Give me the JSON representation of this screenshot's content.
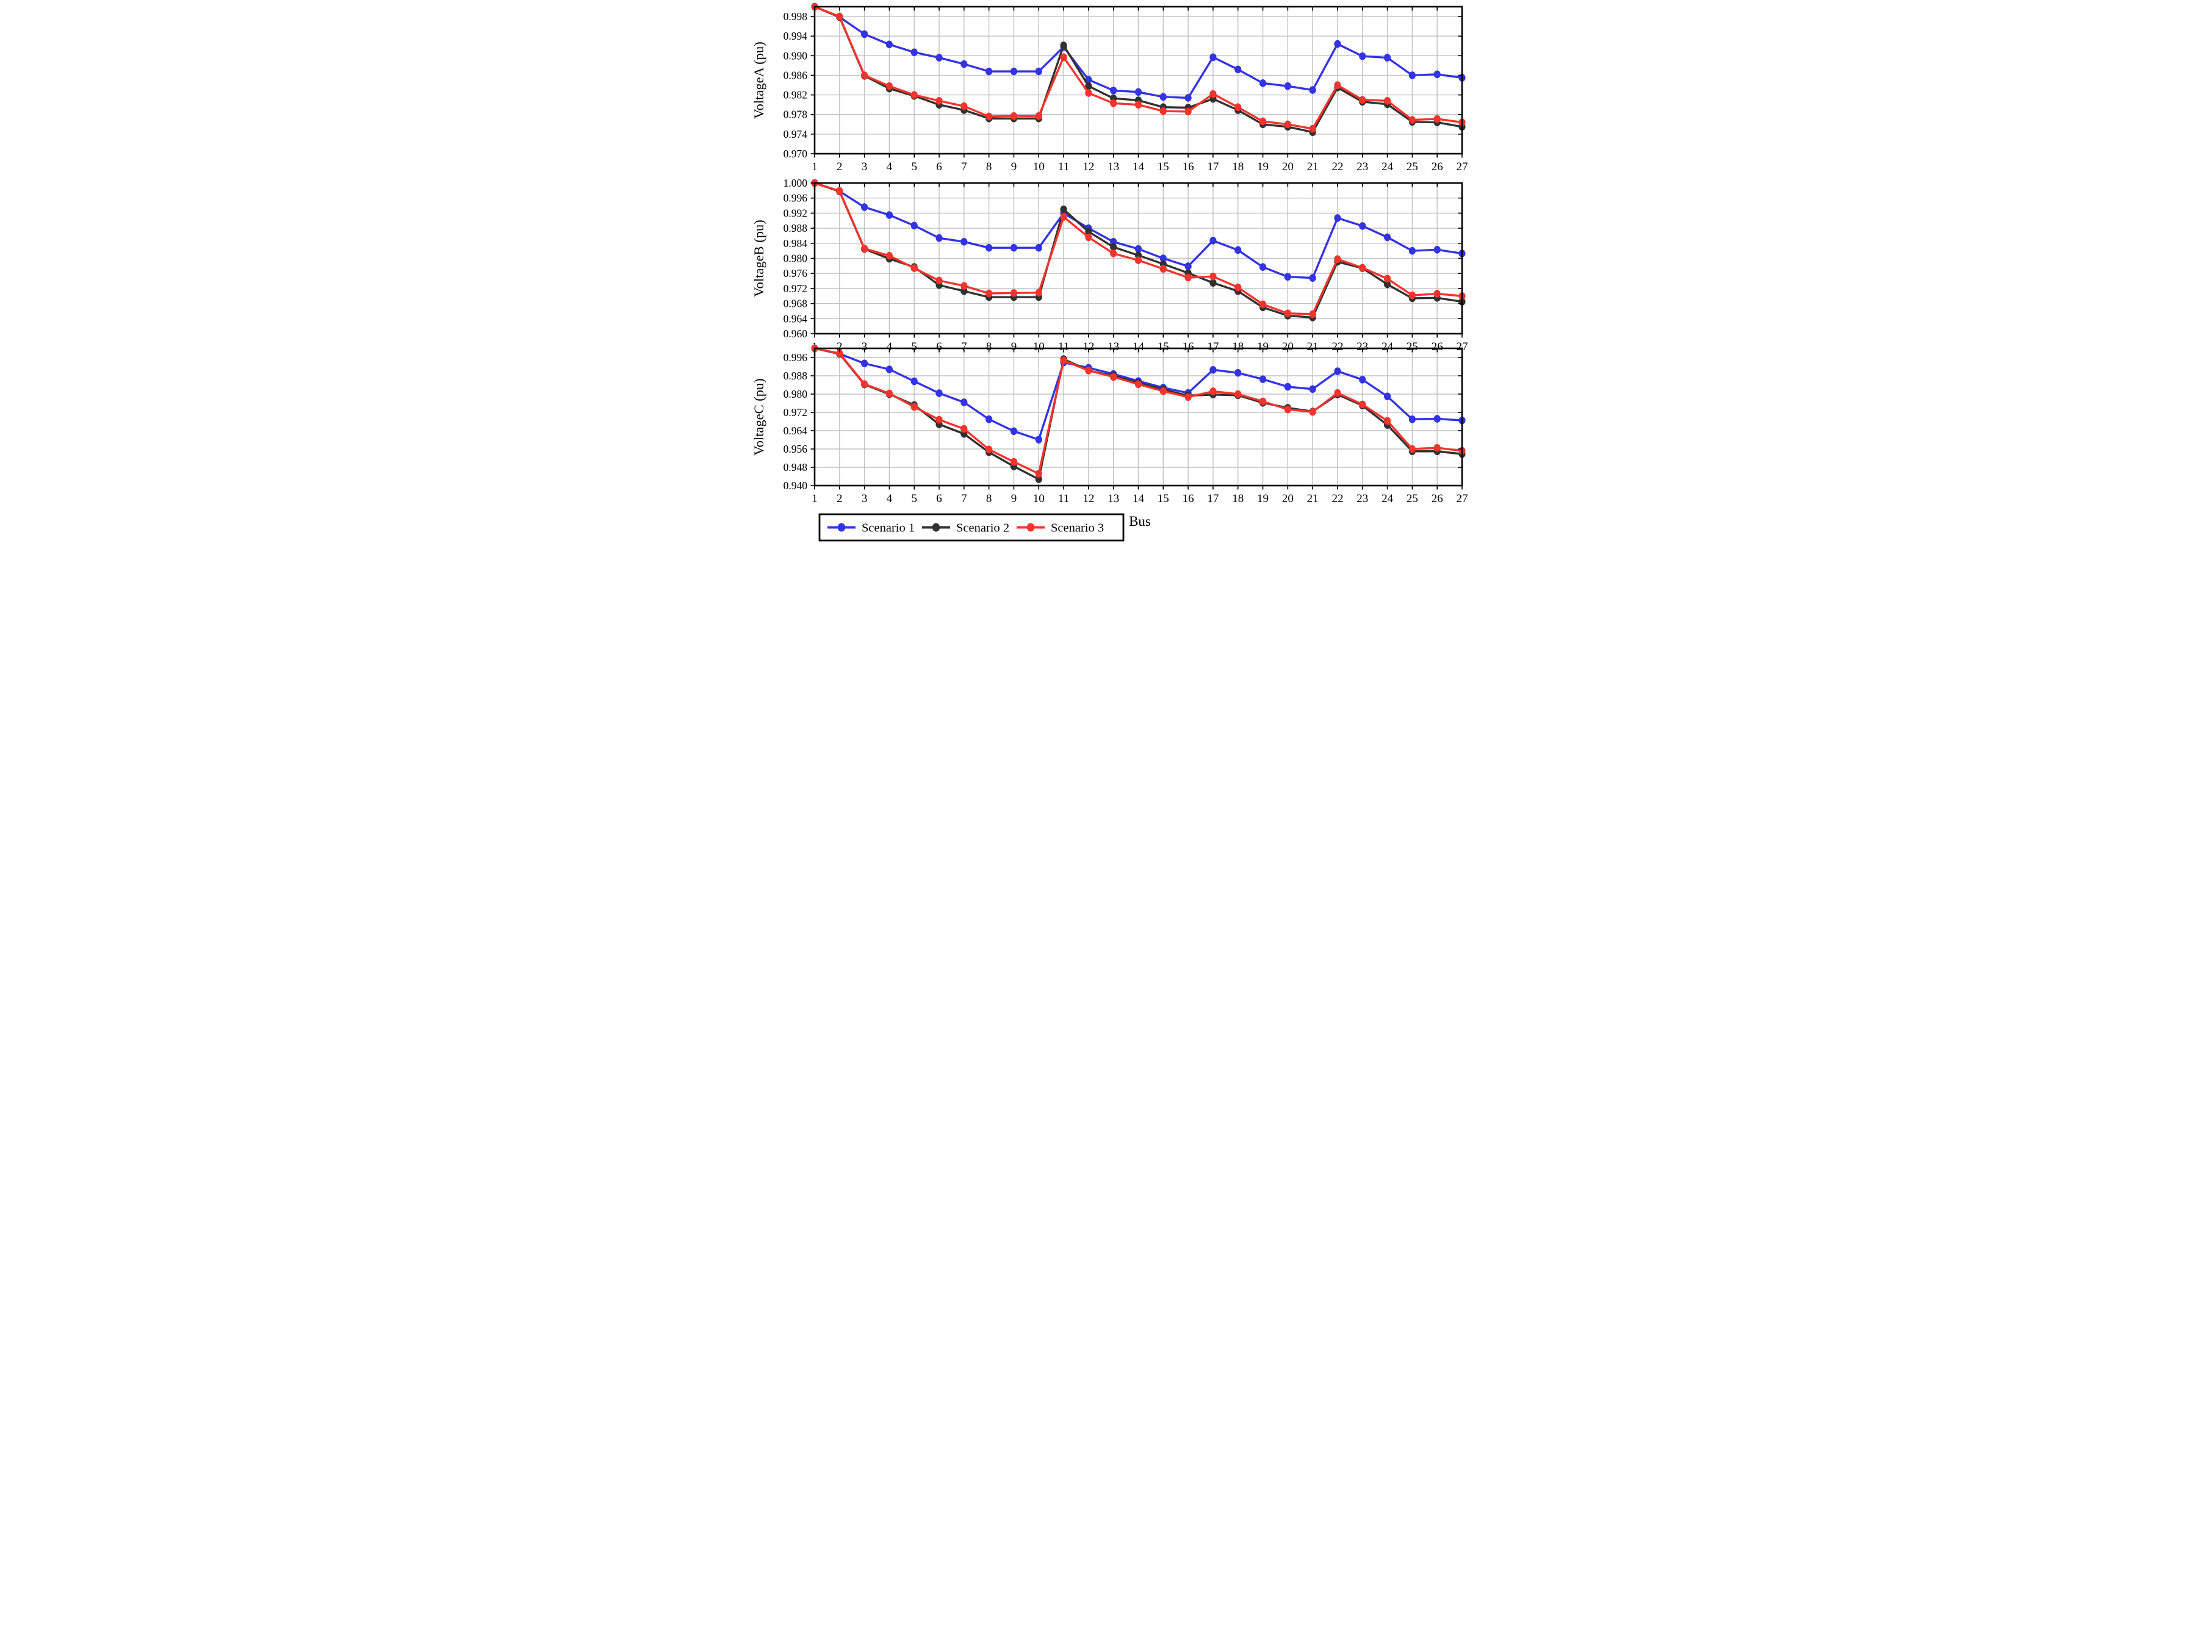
{
  "figure": {
    "xlabel": "Bus",
    "background_color": "#ffffff",
    "grid_color": "#c2c2c2",
    "axis_color": "#000000"
  },
  "legend": {
    "entries": [
      {
        "label": "Scenario 1",
        "color": "#3333e6"
      },
      {
        "label": "Scenario 2",
        "color": "#333130"
      },
      {
        "label": "Scenario 3",
        "color": "#f4342c"
      }
    ]
  },
  "chart_data": [
    {
      "type": "line",
      "ylabel": "VoltageA (pu)",
      "xlabel": "Bus",
      "x": [
        1,
        2,
        3,
        4,
        5,
        6,
        7,
        8,
        9,
        10,
        11,
        12,
        13,
        14,
        15,
        16,
        17,
        18,
        19,
        20,
        21,
        22,
        23,
        24,
        25,
        26,
        27
      ],
      "ylim": [
        0.97,
        1.0
      ],
      "yticks": [
        0.998,
        0.994,
        0.99,
        0.986,
        0.982,
        0.978,
        0.974,
        0.97
      ],
      "ytick_labels": [
        "0.998",
        "0.994",
        "0.990",
        "0.986",
        "0.982",
        "0.978",
        "0.974",
        "0.970"
      ],
      "grid": true,
      "legend_position": "below-figure",
      "series": [
        {
          "name": "Scenario 1",
          "color": "#3333e6",
          "values": [
            1.0,
            0.9979,
            0.9944,
            0.9923,
            0.9907,
            0.9896,
            0.9883,
            0.9868,
            0.9868,
            0.9868,
            0.9918,
            0.9851,
            0.9829,
            0.9826,
            0.9816,
            0.9814,
            0.9897,
            0.9872,
            0.9844,
            0.9838,
            0.983,
            0.9924,
            0.9899,
            0.9896,
            0.986,
            0.9862,
            0.9855
          ]
        },
        {
          "name": "Scenario 2",
          "color": "#333130",
          "values": [
            1.0,
            0.9979,
            0.9859,
            0.9833,
            0.9818,
            0.98,
            0.9789,
            0.9772,
            0.9772,
            0.9772,
            0.9921,
            0.9838,
            0.9813,
            0.9809,
            0.9795,
            0.9794,
            0.9812,
            0.9789,
            0.976,
            0.9755,
            0.9744,
            0.9835,
            0.9806,
            0.9801,
            0.9765,
            0.9764,
            0.9755
          ]
        },
        {
          "name": "Scenario 3",
          "color": "#f4342c",
          "values": [
            1.0,
            0.998,
            0.986,
            0.9838,
            0.982,
            0.9808,
            0.9797,
            0.9776,
            0.9777,
            0.9777,
            0.9897,
            0.9824,
            0.9803,
            0.98,
            0.9787,
            0.9786,
            0.9822,
            0.9795,
            0.9766,
            0.976,
            0.9751,
            0.984,
            0.981,
            0.9808,
            0.9769,
            0.9771,
            0.9764
          ]
        }
      ]
    },
    {
      "type": "line",
      "ylabel": "VoltageB (pu)",
      "xlabel": "Bus",
      "x": [
        1,
        2,
        3,
        4,
        5,
        6,
        7,
        8,
        9,
        10,
        11,
        12,
        13,
        14,
        15,
        16,
        17,
        18,
        19,
        20,
        21,
        22,
        23,
        24,
        25,
        26,
        27
      ],
      "ylim": [
        0.96,
        1.0
      ],
      "yticks": [
        1.0,
        0.996,
        0.992,
        0.988,
        0.984,
        0.98,
        0.976,
        0.972,
        0.968,
        0.964,
        0.96
      ],
      "ytick_labels": [
        "1.000",
        "0.996",
        "0.992",
        "0.988",
        "0.984",
        "0.980",
        "0.976",
        "0.972",
        "0.968",
        "0.964",
        "0.960"
      ],
      "grid": true,
      "legend_position": "below-figure",
      "series": [
        {
          "name": "Scenario 1",
          "color": "#3333e6",
          "values": [
            1.0,
            0.9978,
            0.9936,
            0.9915,
            0.9887,
            0.9854,
            0.9844,
            0.9828,
            0.9828,
            0.9828,
            0.992,
            0.988,
            0.9844,
            0.9825,
            0.98,
            0.9779,
            0.9847,
            0.9822,
            0.9777,
            0.9751,
            0.9748,
            0.9907,
            0.9886,
            0.9856,
            0.982,
            0.9823,
            0.9813
          ]
        },
        {
          "name": "Scenario 2",
          "color": "#333130",
          "values": [
            1.0,
            0.9978,
            0.9825,
            0.9799,
            0.9777,
            0.9729,
            0.9713,
            0.9697,
            0.9697,
            0.9697,
            0.993,
            0.9871,
            0.983,
            0.9808,
            0.9785,
            0.9761,
            0.9735,
            0.9713,
            0.967,
            0.9648,
            0.9643,
            0.9791,
            0.9774,
            0.9731,
            0.9694,
            0.9695,
            0.9685
          ]
        },
        {
          "name": "Scenario 3",
          "color": "#f4342c",
          "values": [
            1.0,
            0.9979,
            0.9826,
            0.9807,
            0.9774,
            0.9741,
            0.9727,
            0.9707,
            0.9708,
            0.9709,
            0.991,
            0.9856,
            0.9813,
            0.9795,
            0.9772,
            0.9749,
            0.9752,
            0.9723,
            0.9678,
            0.9654,
            0.9652,
            0.9798,
            0.9775,
            0.9746,
            0.9702,
            0.9706,
            0.97
          ]
        }
      ]
    },
    {
      "type": "line",
      "ylabel": "VoltageC (pu)",
      "xlabel": "Bus",
      "x": [
        1,
        2,
        3,
        4,
        5,
        6,
        7,
        8,
        9,
        10,
        11,
        12,
        13,
        14,
        15,
        16,
        17,
        18,
        19,
        20,
        21,
        22,
        23,
        24,
        25,
        26,
        27
      ],
      "ylim": [
        0.94,
        1.0
      ],
      "yticks": [
        0.996,
        0.988,
        0.98,
        0.972,
        0.964,
        0.956,
        0.948,
        0.94
      ],
      "ytick_labels": [
        "0.996",
        "0.988",
        "0.980",
        "0.972",
        "0.964",
        "0.956",
        "0.948",
        "0.940"
      ],
      "grid": true,
      "legend_position": "below-figure",
      "series": [
        {
          "name": "Scenario 1",
          "color": "#3333e6",
          "values": [
            1.0,
            0.9976,
            0.9934,
            0.9908,
            0.9856,
            0.9804,
            0.9764,
            0.969,
            0.9638,
            0.9601,
            0.9938,
            0.9915,
            0.9888,
            0.9857,
            0.9828,
            0.9805,
            0.9906,
            0.9893,
            0.9865,
            0.9832,
            0.9822,
            0.99,
            0.9863,
            0.979,
            0.969,
            0.9692,
            0.9685
          ]
        },
        {
          "name": "Scenario 2",
          "color": "#333130",
          "values": [
            1.0,
            0.9976,
            0.9842,
            0.98,
            0.9752,
            0.9668,
            0.9626,
            0.9546,
            0.9484,
            0.9428,
            0.9953,
            0.9903,
            0.988,
            0.985,
            0.982,
            0.9793,
            0.9798,
            0.9795,
            0.9762,
            0.974,
            0.9724,
            0.9798,
            0.975,
            0.9665,
            0.955,
            0.955,
            0.9538
          ]
        },
        {
          "name": "Scenario 3",
          "color": "#f4342c",
          "values": [
            1.0,
            0.9978,
            0.9844,
            0.9803,
            0.9744,
            0.9688,
            0.9648,
            0.9558,
            0.9504,
            0.9452,
            0.9947,
            0.9903,
            0.9875,
            0.9843,
            0.9813,
            0.9787,
            0.9812,
            0.98,
            0.9768,
            0.9733,
            0.9722,
            0.9805,
            0.9755,
            0.9683,
            0.956,
            0.9565,
            0.9552
          ]
        }
      ]
    }
  ]
}
